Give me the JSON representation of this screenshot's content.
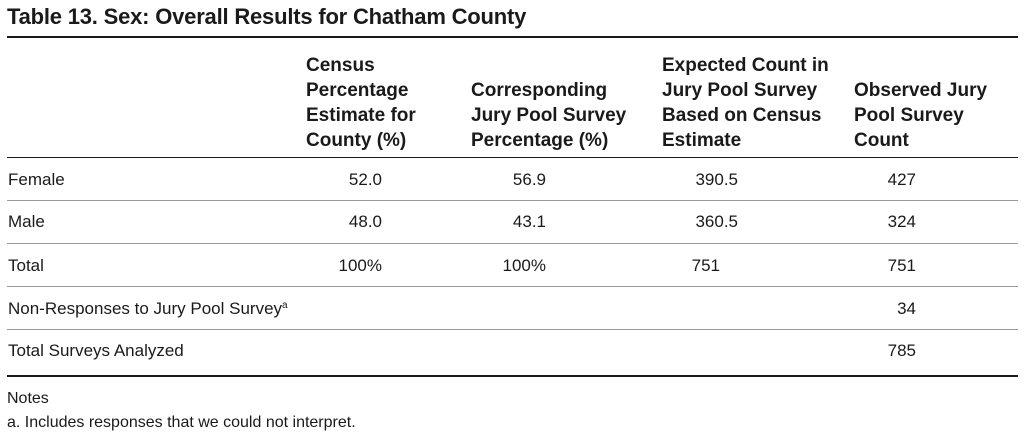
{
  "table": {
    "title": "Table 13.  Sex: Overall Results for Chatham County",
    "headers": [
      [
        "Census",
        "Percentage",
        "Estimate for",
        "County (%)"
      ],
      [
        "Corresponding",
        "Jury Pool Survey",
        "Percentage (%)"
      ],
      [
        "Expected Count in",
        "Jury Pool Survey",
        "Based on Census",
        "Estimate"
      ],
      [
        "Observed Jury",
        "Pool Survey",
        "Count"
      ]
    ],
    "rows": [
      {
        "label": "Female",
        "census": "52.0",
        "jury_pct": "56.9",
        "expected": "390.5",
        "observed": "427"
      },
      {
        "label": "Male",
        "census": "48.0",
        "jury_pct": "43.1",
        "expected": "360.5",
        "observed": "324"
      },
      {
        "label": "Total",
        "census": "100%",
        "jury_pct": "100%",
        "expected": "751",
        "observed": "751"
      },
      {
        "label": "Non-Responses to Jury Pool Survey",
        "label_sup": "a",
        "census": "",
        "jury_pct": "",
        "expected": "",
        "observed": "34"
      },
      {
        "label": "Total Surveys Analyzed",
        "census": "",
        "jury_pct": "",
        "expected": "",
        "observed": "785"
      }
    ]
  },
  "notes": {
    "heading": "Notes",
    "items": [
      "a. Includes responses that we could not interpret."
    ]
  }
}
